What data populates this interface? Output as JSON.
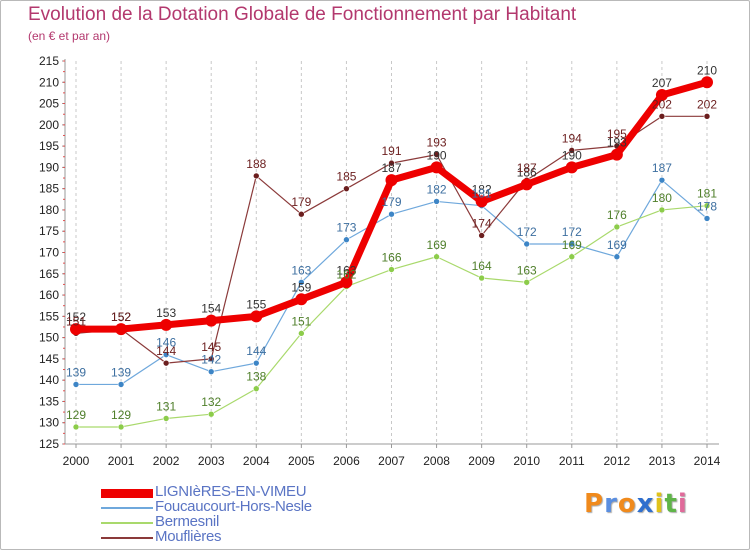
{
  "header": {
    "title": "Evolution de la Dotation Globale de Fonctionnement par Habitant",
    "subtitle": "(en € et par an)"
  },
  "logo": {
    "letters": [
      "P",
      "r",
      "o",
      "x",
      "i",
      "t",
      "i"
    ],
    "colors": [
      "#f08a1c",
      "#5a8ee0",
      "#f08a1c",
      "#2f6fce",
      "#e0c21a",
      "#5fb548",
      "#e06a9a"
    ]
  },
  "chart_data": {
    "type": "line",
    "x": [
      "2000",
      "2001",
      "2002",
      "2003",
      "2004",
      "2005",
      "2006",
      "2007",
      "2008",
      "2009",
      "2010",
      "2011",
      "2012",
      "2013",
      "2014"
    ],
    "ylim": [
      125,
      215
    ],
    "yticks": [
      125,
      130,
      135,
      140,
      145,
      150,
      155,
      160,
      165,
      170,
      175,
      180,
      185,
      190,
      195,
      200,
      205,
      210,
      215
    ],
    "grid": "vertical dashed",
    "legend_position": "bottom-left",
    "series": [
      {
        "name": "LIGNIèRES-EN-VIMEU",
        "color": "#ee0000",
        "label_color": "#333333",
        "width": 7,
        "marker": 6,
        "values": [
          152,
          152,
          153,
          154,
          155,
          159,
          163,
          187,
          190,
          182,
          186,
          190,
          193,
          207,
          210
        ]
      },
      {
        "name": "Foucaucourt-Hors-Nesle",
        "color": "#6fa8dc",
        "marker_color": "#3d85c6",
        "label_color": "#3d6fa0",
        "width": 1.2,
        "marker": 3,
        "values": [
          139,
          139,
          146,
          142,
          144,
          163,
          173,
          179,
          182,
          181,
          172,
          172,
          169,
          187,
          178
        ]
      },
      {
        "name": "Bermesnil",
        "color": "#a9d96c",
        "marker_color": "#8ccc4a",
        "label_color": "#4f7f2a",
        "width": 1.2,
        "marker": 3,
        "values": [
          129,
          129,
          131,
          132,
          138,
          151,
          162,
          166,
          169,
          164,
          163,
          169,
          176,
          180,
          181
        ]
      },
      {
        "name": "Mouflières",
        "color": "#8b3a3a",
        "marker_color": "#6b1e1e",
        "label_color": "#6b1e1e",
        "width": 1.2,
        "marker": 3,
        "values": [
          151,
          152,
          144,
          145,
          188,
          179,
          185,
          191,
          193,
          174,
          187,
          194,
          195,
          202,
          202
        ]
      }
    ]
  }
}
